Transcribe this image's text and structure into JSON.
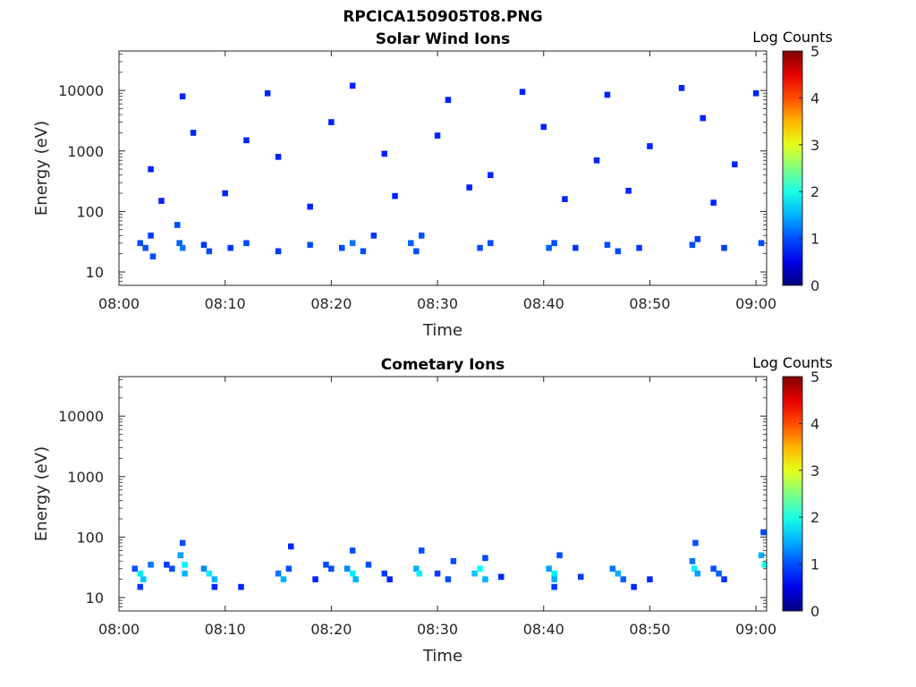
{
  "figure_title": "RPCICA150905T08.PNG",
  "chart_data": [
    {
      "type": "heatmap",
      "title": "Solar Wind Ions",
      "xlabel": "Time",
      "ylabel": "Energy (eV)",
      "x_ticks": [
        "08:00",
        "08:10",
        "08:20",
        "08:30",
        "08:40",
        "08:50",
        "09:00"
      ],
      "y_ticks": [
        "10",
        "100",
        "1000",
        "10000"
      ],
      "y_scale": "log",
      "ylim": [
        6,
        45000
      ],
      "xlim_minutes": [
        0,
        61
      ],
      "colorbar": {
        "label": "Log Counts",
        "ticks": [
          "0",
          "1",
          "2",
          "3",
          "4",
          "5"
        ],
        "range": [
          0,
          5
        ],
        "colormap": "jet"
      },
      "cells": [
        [
          2.0,
          30,
          1.0
        ],
        [
          2.5,
          25,
          1.0
        ],
        [
          3.0,
          40,
          0.9
        ],
        [
          3.2,
          18,
          1.0
        ],
        [
          5.5,
          60,
          1.0
        ],
        [
          5.7,
          30,
          1.1
        ],
        [
          6.0,
          25,
          1.2
        ],
        [
          8.0,
          28,
          0.9
        ],
        [
          8.5,
          22,
          1.0
        ],
        [
          10.5,
          25,
          0.9
        ],
        [
          12.0,
          30,
          1.0
        ],
        [
          15.0,
          22,
          0.9
        ],
        [
          18.0,
          28,
          1.0
        ],
        [
          21.0,
          25,
          1.0
        ],
        [
          22.0,
          30,
          1.2
        ],
        [
          23.0,
          22,
          1.0
        ],
        [
          24.0,
          40,
          0.9
        ],
        [
          27.5,
          30,
          1.1
        ],
        [
          28.0,
          22,
          1.0
        ],
        [
          28.5,
          40,
          1.0
        ],
        [
          34.0,
          25,
          1.0
        ],
        [
          35.0,
          30,
          1.0
        ],
        [
          40.5,
          25,
          1.1
        ],
        [
          41.0,
          30,
          1.0
        ],
        [
          43.0,
          25,
          0.9
        ],
        [
          46.0,
          28,
          1.0
        ],
        [
          47.0,
          22,
          1.0
        ],
        [
          49.0,
          25,
          0.9
        ],
        [
          54.0,
          28,
          1.0
        ],
        [
          54.5,
          35,
          0.9
        ],
        [
          57.0,
          25,
          0.9
        ],
        [
          60.5,
          30,
          1.0
        ],
        [
          3.0,
          500,
          0.8
        ],
        [
          7.0,
          2000,
          0.8
        ],
        [
          12.0,
          1500,
          0.8
        ],
        [
          15.0,
          800,
          0.8
        ],
        [
          20.0,
          3000,
          0.8
        ],
        [
          25.0,
          900,
          0.8
        ],
        [
          30.0,
          1800,
          0.8
        ],
        [
          35.0,
          400,
          0.8
        ],
        [
          40.0,
          2500,
          0.8
        ],
        [
          45.0,
          700,
          0.8
        ],
        [
          50.0,
          1200,
          0.8
        ],
        [
          55.0,
          3500,
          0.8
        ],
        [
          58.0,
          600,
          0.8
        ],
        [
          4.0,
          150,
          0.8
        ],
        [
          10.0,
          200,
          0.8
        ],
        [
          18.0,
          120,
          0.8
        ],
        [
          26.0,
          180,
          0.8
        ],
        [
          33.0,
          250,
          0.8
        ],
        [
          42.0,
          160,
          0.8
        ],
        [
          48.0,
          220,
          0.8
        ],
        [
          56.0,
          140,
          0.8
        ],
        [
          6.0,
          8000,
          0.8
        ],
        [
          14.0,
          9000,
          0.8
        ],
        [
          22.0,
          12000,
          0.8
        ],
        [
          31.0,
          7000,
          0.8
        ],
        [
          38.0,
          9500,
          0.8
        ],
        [
          46.0,
          8500,
          0.8
        ],
        [
          53.0,
          11000,
          0.8
        ],
        [
          60.0,
          9000,
          0.8
        ]
      ]
    },
    {
      "type": "heatmap",
      "title": "Cometary Ions",
      "xlabel": "Time",
      "ylabel": "Energy (eV)",
      "x_ticks": [
        "08:00",
        "08:10",
        "08:20",
        "08:30",
        "08:40",
        "08:50",
        "09:00"
      ],
      "y_ticks": [
        "10",
        "100",
        "1000",
        "10000"
      ],
      "y_scale": "log",
      "ylim": [
        6,
        45000
      ],
      "xlim_minutes": [
        0,
        61
      ],
      "colorbar": {
        "label": "Log Counts",
        "ticks": [
          "0",
          "1",
          "2",
          "3",
          "4",
          "5"
        ],
        "range": [
          0,
          5
        ],
        "colormap": "jet"
      },
      "cells": [
        [
          1.5,
          30,
          1.0
        ],
        [
          2.0,
          25,
          1.8
        ],
        [
          2.3,
          20,
          1.6
        ],
        [
          2.0,
          15,
          0.9
        ],
        [
          3.0,
          35,
          1.2
        ],
        [
          4.5,
          35,
          0.9
        ],
        [
          5.0,
          30,
          1.0
        ],
        [
          5.8,
          50,
          1.4
        ],
        [
          6.0,
          80,
          1.0
        ],
        [
          6.2,
          35,
          1.8
        ],
        [
          6.2,
          25,
          1.5
        ],
        [
          8.0,
          30,
          1.3
        ],
        [
          8.5,
          25,
          1.8
        ],
        [
          9.0,
          20,
          1.5
        ],
        [
          9.0,
          15,
          0.8
        ],
        [
          11.5,
          15,
          0.8
        ],
        [
          15.0,
          25,
          1.2
        ],
        [
          15.5,
          20,
          1.5
        ],
        [
          16.0,
          30,
          1.0
        ],
        [
          16.2,
          70,
          0.8
        ],
        [
          18.5,
          20,
          0.8
        ],
        [
          19.5,
          35,
          1.0
        ],
        [
          20.0,
          30,
          1.0
        ],
        [
          21.5,
          30,
          1.3
        ],
        [
          22.0,
          25,
          1.8
        ],
        [
          22.3,
          20,
          1.5
        ],
        [
          22.0,
          60,
          1.0
        ],
        [
          23.5,
          35,
          1.0
        ],
        [
          25.0,
          25,
          0.9
        ],
        [
          25.5,
          20,
          0.8
        ],
        [
          28.0,
          30,
          1.5
        ],
        [
          28.3,
          25,
          1.8
        ],
        [
          28.5,
          60,
          1.0
        ],
        [
          30.0,
          25,
          0.9
        ],
        [
          31.0,
          20,
          1.0
        ],
        [
          31.5,
          40,
          1.0
        ],
        [
          33.5,
          25,
          1.6
        ],
        [
          34.0,
          30,
          1.9
        ],
        [
          34.5,
          20,
          1.5
        ],
        [
          34.5,
          45,
          1.0
        ],
        [
          36.0,
          22,
          0.8
        ],
        [
          40.5,
          30,
          1.4
        ],
        [
          41.0,
          25,
          1.8
        ],
        [
          41.0,
          20,
          1.5
        ],
        [
          41.5,
          50,
          1.0
        ],
        [
          41.0,
          15,
          0.9
        ],
        [
          43.5,
          22,
          0.9
        ],
        [
          46.5,
          30,
          1.2
        ],
        [
          47.0,
          25,
          1.5
        ],
        [
          47.5,
          20,
          1.1
        ],
        [
          48.5,
          15,
          0.8
        ],
        [
          50.0,
          20,
          0.8
        ],
        [
          54.0,
          40,
          1.2
        ],
        [
          54.2,
          30,
          1.8
        ],
        [
          54.5,
          25,
          1.4
        ],
        [
          54.3,
          80,
          1.0
        ],
        [
          56.0,
          30,
          1.0
        ],
        [
          56.5,
          25,
          1.1
        ],
        [
          57.0,
          20,
          0.9
        ],
        [
          60.5,
          50,
          1.5
        ],
        [
          60.7,
          120,
          1.0
        ],
        [
          60.8,
          35,
          2.0
        ]
      ]
    }
  ]
}
